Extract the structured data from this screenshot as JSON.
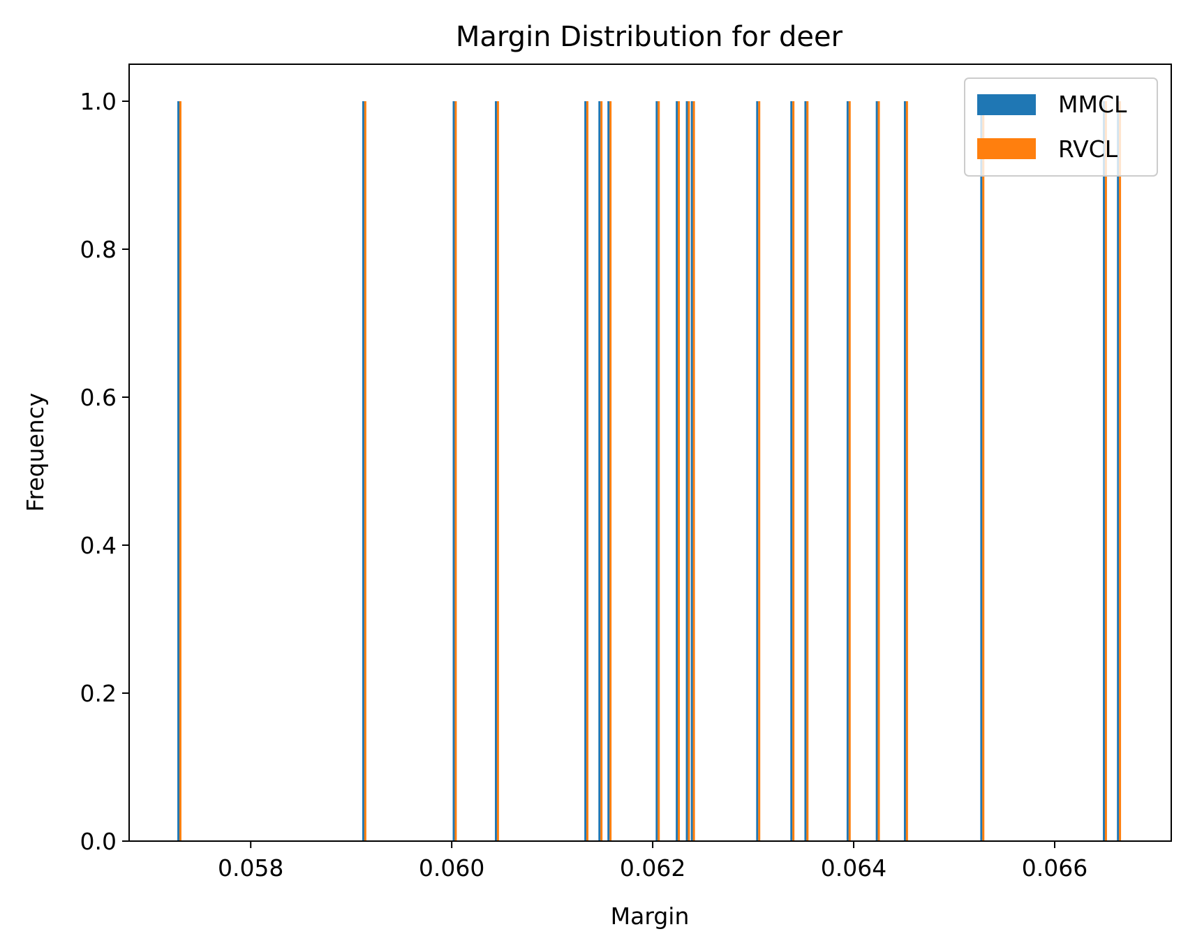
{
  "chart_data": {
    "type": "bar",
    "title": "Margin Distribution for deer",
    "xlabel": "Margin",
    "ylabel": "Frequency",
    "xlim": [
      0.05679,
      0.06716
    ],
    "ylim": [
      0.0,
      1.05
    ],
    "xticks": [
      0.058,
      0.06,
      0.062,
      0.064,
      0.066
    ],
    "xtick_labels": [
      "0.058",
      "0.060",
      "0.062",
      "0.064",
      "0.066"
    ],
    "yticks": [
      0.0,
      0.2,
      0.4,
      0.6,
      0.8,
      1.0
    ],
    "ytick_labels": [
      "0.0",
      "0.2",
      "0.4",
      "0.6",
      "0.8",
      "1.0"
    ],
    "grid": false,
    "legend_position": "top-right",
    "series": [
      {
        "name": "MMCL",
        "color": "#1f77b4",
        "x": [
          0.05728,
          0.05912,
          0.06002,
          0.06044,
          0.06133,
          0.06147,
          0.06156,
          0.06204,
          0.06224,
          0.06234,
          0.06239,
          0.06304,
          0.06338,
          0.06352,
          0.06394,
          0.06423,
          0.06451,
          0.06527,
          0.06649,
          0.06663
        ],
        "values": [
          1,
          1,
          1,
          1,
          1,
          1,
          1,
          1,
          1,
          1,
          1,
          1,
          1,
          1,
          1,
          1,
          1,
          1,
          1,
          1
        ]
      },
      {
        "name": "RVCL",
        "color": "#ff7f0e",
        "x": [
          0.0573,
          0.05914,
          0.06004,
          0.06046,
          0.06135,
          0.06149,
          0.06158,
          0.06206,
          0.06226,
          0.06236,
          0.06241,
          0.06306,
          0.0634,
          0.06354,
          0.06396,
          0.06425,
          0.06453,
          0.06529,
          0.06651,
          0.06665
        ],
        "values": [
          1,
          1,
          1,
          1,
          1,
          1,
          1,
          1,
          1,
          1,
          1,
          1,
          1,
          1,
          1,
          1,
          1,
          1,
          1,
          1
        ]
      }
    ]
  }
}
